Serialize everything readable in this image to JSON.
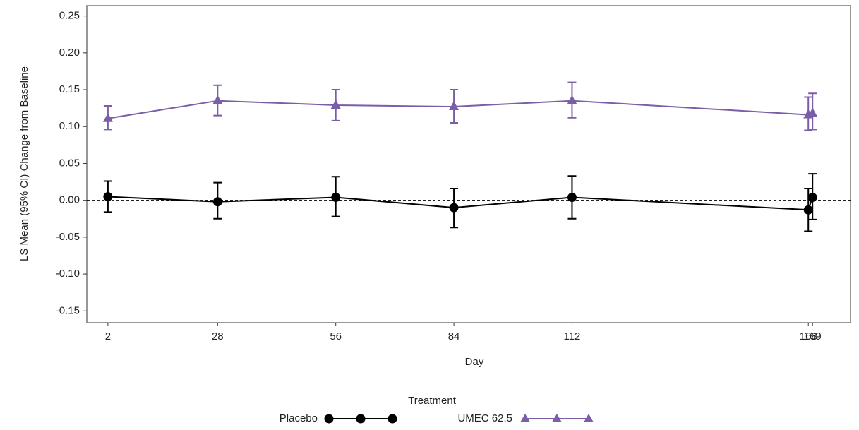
{
  "chart_data": {
    "type": "line",
    "x_label": "Day",
    "y_label": "LS Mean (95% CI) Change from Baseline",
    "x": [
      2,
      28,
      56,
      84,
      112,
      168,
      169
    ],
    "xlim": [
      -3,
      178
    ],
    "xticks": [
      2,
      28,
      56,
      84,
      112,
      168,
      169
    ],
    "ylim": [
      -0.166,
      0.264
    ],
    "yticks": [
      {
        "value": -0.15,
        "label": "-0.15"
      },
      {
        "value": -0.1,
        "label": "-0.10"
      },
      {
        "value": -0.05,
        "label": "-0.05"
      },
      {
        "value": 0,
        "label": "0.00"
      },
      {
        "value": 0.05,
        "label": "0.05"
      },
      {
        "value": 0.1,
        "label": "0.10"
      },
      {
        "value": 0.15,
        "label": "0.15"
      },
      {
        "value": 0.2,
        "label": "0.20"
      },
      {
        "value": 0.25,
        "label": "0.25"
      }
    ],
    "reference_line": 0,
    "legend_title": "Treatment",
    "series": [
      {
        "name": "Placebo",
        "color": "#000000",
        "marker": "circle",
        "values": [
          0.005,
          -0.002,
          0.004,
          -0.01,
          0.004,
          -0.013,
          0.004
        ],
        "lower": [
          -0.016,
          -0.025,
          -0.022,
          -0.037,
          -0.025,
          -0.042,
          -0.026
        ],
        "upper": [
          0.026,
          0.024,
          0.032,
          0.016,
          0.033,
          0.016,
          0.036
        ]
      },
      {
        "name": "UMEC 62.5",
        "color": "#7a5ea8",
        "marker": "triangle",
        "values": [
          0.111,
          0.135,
          0.129,
          0.127,
          0.135,
          0.116,
          0.118
        ],
        "lower": [
          0.096,
          0.115,
          0.108,
          0.105,
          0.112,
          0.095,
          0.096
        ],
        "upper": [
          0.128,
          0.156,
          0.15,
          0.15,
          0.16,
          0.14,
          0.145
        ]
      }
    ]
  }
}
